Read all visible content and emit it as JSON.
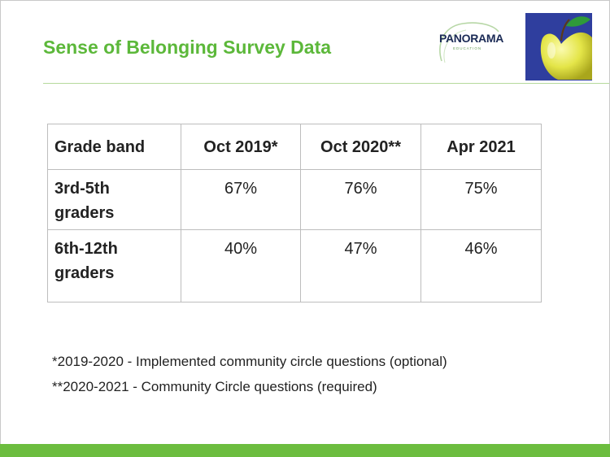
{
  "slide": {
    "title": "Sense of Belonging Survey Data"
  },
  "logo": {
    "name": "PANORAMA",
    "subtitle": "EDUCATION"
  },
  "colors": {
    "title_green": "#5cb83a",
    "bar_green": "#6cbd3f",
    "apple_bg": "#2f3e9e",
    "apple_yellow": "#e8e94a"
  },
  "table": {
    "headers": [
      "Grade band",
      "Oct 2019*",
      "Oct 2020**",
      "Apr 2021"
    ],
    "rows": [
      {
        "label_line1": "3rd-5th",
        "label_line2": "graders",
        "values": [
          "67%",
          "76%",
          "75%"
        ]
      },
      {
        "label_line1": "6th-12th",
        "label_line2": "graders",
        "values": [
          "40%",
          "47%",
          "46%"
        ]
      }
    ]
  },
  "notes": [
    "*2019-2020 - Implemented community circle questions (optional)",
    "**2020-2021 - Community Circle questions (required)"
  ]
}
